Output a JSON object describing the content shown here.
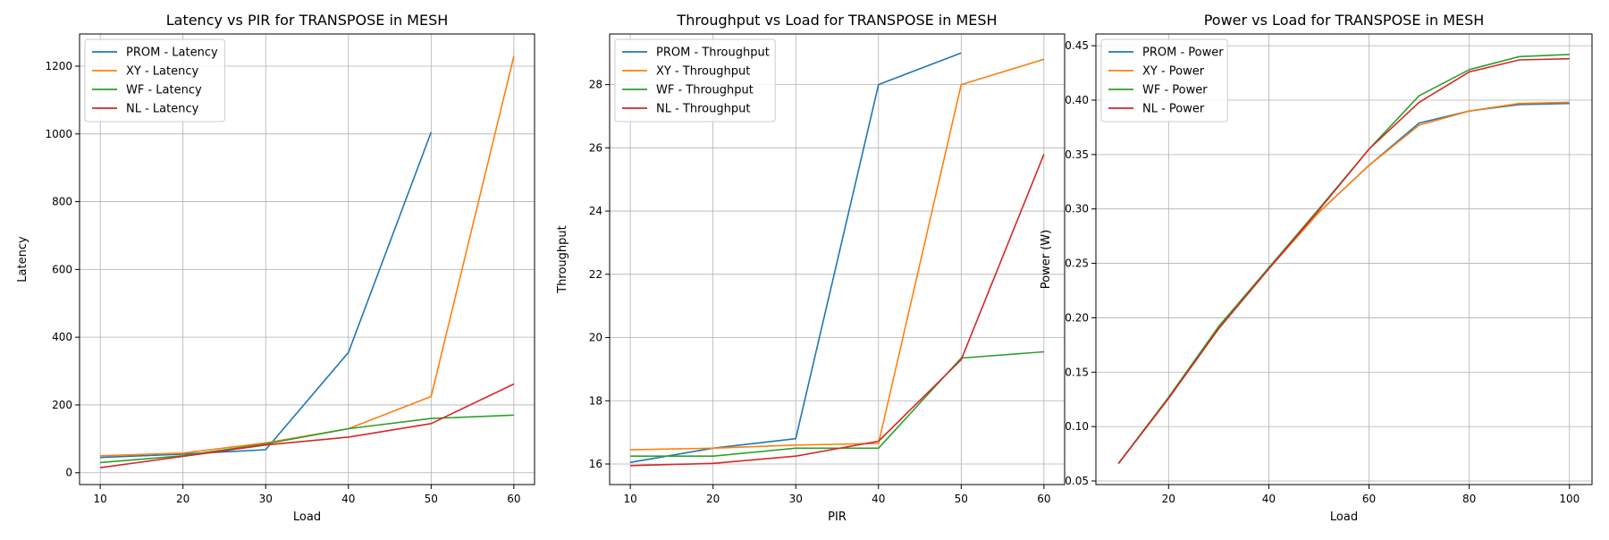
{
  "colors": {
    "PROM": "#1f77b4",
    "XY": "#ff7f0e",
    "WF": "#2ca02c",
    "NL": "#d62728"
  },
  "chart_data": [
    {
      "type": "line",
      "title": "Latency vs PIR for TRANSPOSE in MESH",
      "xlabel": "Load",
      "ylabel": "Latency",
      "xlim": [
        7.5,
        62.5
      ],
      "ylim": [
        -35,
        1295
      ],
      "xticks": [
        10,
        20,
        30,
        40,
        50,
        60
      ],
      "yticks": [
        0,
        200,
        400,
        600,
        800,
        1000,
        1200
      ],
      "grid": true,
      "legend_placement": "top-left",
      "series": [
        {
          "name": "PROM - Latency",
          "color": "PROM",
          "x": [
            10,
            20,
            30,
            40,
            50
          ],
          "y": [
            45,
            55,
            68,
            355,
            1005
          ]
        },
        {
          "name": "XY - Latency",
          "color": "XY",
          "x": [
            10,
            20,
            30,
            40,
            50,
            60
          ],
          "y": [
            50,
            58,
            88,
            130,
            225,
            1230
          ]
        },
        {
          "name": "WF - Latency",
          "color": "WF",
          "x": [
            10,
            20,
            30,
            40,
            50,
            60
          ],
          "y": [
            30,
            50,
            85,
            130,
            160,
            170
          ]
        },
        {
          "name": "NL - Latency",
          "color": "NL",
          "x": [
            10,
            20,
            30,
            40,
            50,
            60
          ],
          "y": [
            15,
            48,
            82,
            105,
            145,
            262
          ]
        }
      ]
    },
    {
      "type": "line",
      "title": "Throughput vs Load for TRANSPOSE in MESH",
      "xlabel": "PIR",
      "ylabel": "Throughput",
      "xlim": [
        7.5,
        62.5
      ],
      "ylim": [
        15.35,
        29.6
      ],
      "xticks": [
        10,
        20,
        30,
        40,
        50,
        60
      ],
      "yticks": [
        16,
        18,
        20,
        22,
        24,
        26,
        28
      ],
      "grid": true,
      "legend_placement": "top-left",
      "series": [
        {
          "name": "PROM - Throughput",
          "color": "PROM",
          "x": [
            10,
            20,
            30,
            40,
            50
          ],
          "y": [
            16.05,
            16.5,
            16.8,
            28.0,
            29.0
          ]
        },
        {
          "name": "XY - Throughput",
          "color": "XY",
          "x": [
            10,
            20,
            30,
            40,
            50,
            60
          ],
          "y": [
            16.45,
            16.5,
            16.6,
            16.65,
            28.0,
            28.8
          ]
        },
        {
          "name": "WF - Throughput",
          "color": "WF",
          "x": [
            10,
            20,
            30,
            40,
            50,
            60
          ],
          "y": [
            16.25,
            16.25,
            16.5,
            16.5,
            19.35,
            19.55
          ]
        },
        {
          "name": "NL - Throughput",
          "color": "NL",
          "x": [
            10,
            20,
            30,
            40,
            50,
            60
          ],
          "y": [
            15.95,
            16.02,
            16.25,
            16.72,
            19.3,
            25.8
          ]
        }
      ]
    },
    {
      "type": "line",
      "title": "Power vs Load for TRANSPOSE in MESH",
      "xlabel": "Load",
      "ylabel": "Power (W)",
      "xlim": [
        5.5,
        104.5
      ],
      "ylim": [
        0.0467,
        0.4608
      ],
      "xticks": [
        20,
        40,
        60,
        80,
        100
      ],
      "yticks": [
        0.05,
        0.1,
        0.15,
        0.2,
        0.25,
        0.3,
        0.35,
        0.4,
        0.45
      ],
      "ytick_labels": [
        "0.05",
        "0.10",
        "0.15",
        "0.20",
        "0.25",
        "0.30",
        "0.35",
        "0.40",
        "0.45"
      ],
      "grid": true,
      "legend_placement": "top-left",
      "series": [
        {
          "name": "PROM - Power",
          "color": "PROM",
          "x": [
            10,
            20,
            30,
            40,
            50,
            60,
            70,
            80,
            90,
            100
          ],
          "y": [
            0.066,
            0.126,
            0.19,
            0.245,
            0.297,
            0.34,
            0.379,
            0.39,
            0.396,
            0.397
          ]
        },
        {
          "name": "XY - Power",
          "color": "XY",
          "x": [
            10,
            20,
            30,
            40,
            50,
            60,
            70,
            80,
            90,
            100
          ],
          "y": [
            0.066,
            0.126,
            0.19,
            0.245,
            0.297,
            0.34,
            0.377,
            0.39,
            0.397,
            0.398
          ]
        },
        {
          "name": "WF - Power",
          "color": "WF",
          "x": [
            10,
            20,
            30,
            40,
            50,
            60,
            70,
            80,
            90,
            100
          ],
          "y": [
            0.066,
            0.127,
            0.192,
            0.246,
            0.3,
            0.355,
            0.404,
            0.428,
            0.44,
            0.442
          ]
        },
        {
          "name": "NL - Power",
          "color": "NL",
          "x": [
            10,
            20,
            30,
            40,
            50,
            60,
            70,
            80,
            90,
            100
          ],
          "y": [
            0.066,
            0.126,
            0.19,
            0.245,
            0.299,
            0.355,
            0.398,
            0.426,
            0.437,
            0.438
          ]
        }
      ]
    }
  ]
}
